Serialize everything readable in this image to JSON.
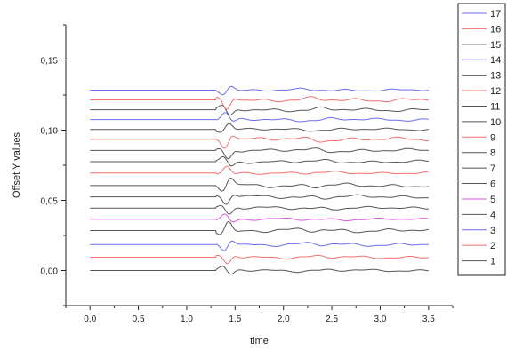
{
  "chart_data": {
    "type": "line",
    "xlabel": "time",
    "ylabel": "Offset Y values",
    "xlim": [
      -0.25,
      3.75
    ],
    "ylim": [
      -0.025,
      0.175
    ],
    "xticks": [
      0.0,
      0.5,
      1.0,
      1.5,
      2.0,
      2.5,
      3.0,
      3.5
    ],
    "xtick_labels": [
      "0,0",
      "0,5",
      "1,0",
      "1,5",
      "2,0",
      "2,5",
      "3,0",
      "3,5"
    ],
    "yticks": [
      0.0,
      0.05,
      0.1,
      0.15
    ],
    "ytick_labels": [
      "0,00",
      "0,05",
      "0,10",
      "0,15"
    ],
    "grid": false,
    "legend_position": "right",
    "onset_time": 1.3,
    "x_range": [
      0.0,
      3.5
    ],
    "series": [
      {
        "name": "1",
        "offset": 0.0,
        "color": "#555555"
      },
      {
        "name": "2",
        "offset": 0.0095,
        "color": "#f07070"
      },
      {
        "name": "3",
        "offset": 0.0185,
        "color": "#6b6bf0"
      },
      {
        "name": "4",
        "offset": 0.0285,
        "color": "#555555"
      },
      {
        "name": "5",
        "offset": 0.0365,
        "color": "#dd55dd"
      },
      {
        "name": "6",
        "offset": 0.0445,
        "color": "#555555"
      },
      {
        "name": "7",
        "offset": 0.0525,
        "color": "#555555"
      },
      {
        "name": "8",
        "offset": 0.0605,
        "color": "#555555"
      },
      {
        "name": "9",
        "offset": 0.0695,
        "color": "#f07070"
      },
      {
        "name": "10",
        "offset": 0.0775,
        "color": "#555555"
      },
      {
        "name": "11",
        "offset": 0.0855,
        "color": "#555555"
      },
      {
        "name": "12",
        "offset": 0.0935,
        "color": "#f07070"
      },
      {
        "name": "13",
        "offset": 0.1005,
        "color": "#555555"
      },
      {
        "name": "14",
        "offset": 0.1075,
        "color": "#6b6bf0"
      },
      {
        "name": "15",
        "offset": 0.1145,
        "color": "#555555"
      },
      {
        "name": "16",
        "offset": 0.1215,
        "color": "#f07070"
      },
      {
        "name": "17",
        "offset": 0.1285,
        "color": "#6b6bf0"
      }
    ]
  }
}
